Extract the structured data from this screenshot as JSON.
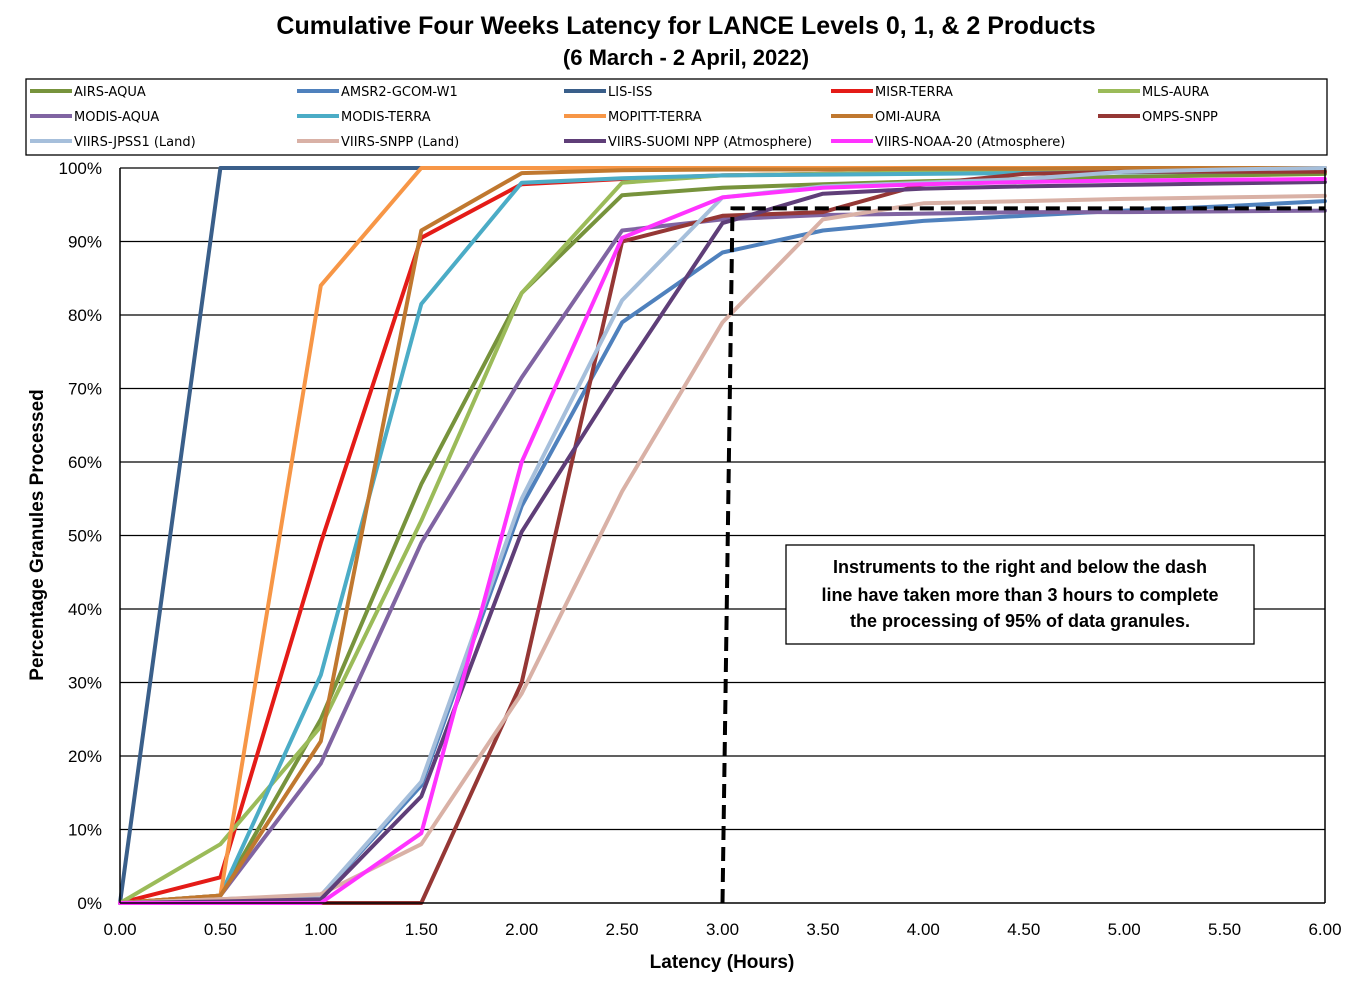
{
  "chart_data": {
    "type": "line",
    "title": "Cumulative Four Weeks Latency  for LANCE Levels 0, 1, & 2 Products",
    "subtitle": "(6  March   - 2  April,  2022)",
    "xlabel": "Latency (Hours)",
    "ylabel": "Percentage Granules Processed",
    "xlim": [
      0,
      6
    ],
    "ylim": [
      0,
      100
    ],
    "x": [
      0,
      0.5,
      1,
      1.5,
      2,
      2.5,
      3,
      3.5,
      4,
      4.5,
      5,
      5.5,
      6
    ],
    "x_tick_labels": [
      "0.00",
      "0.50",
      "1.00",
      "1.50",
      "2.00",
      "2.50",
      "3.00",
      "3.50",
      "4.00",
      "4.50",
      "5.00",
      "5.50",
      "6.00"
    ],
    "y_ticks": [
      0,
      10,
      20,
      30,
      40,
      50,
      60,
      70,
      80,
      90,
      100
    ],
    "y_tick_labels": [
      "0%",
      "10%",
      "20%",
      "30%",
      "40%",
      "50%",
      "60%",
      "70%",
      "80%",
      "90%",
      "100%"
    ],
    "grid": "horizontal",
    "legend_position": "top",
    "series": [
      {
        "name": "AIRS-AQUA",
        "color": "#77933C",
        "values": [
          0,
          1,
          25,
          57,
          83,
          96.3,
          97.3,
          97.8,
          98.2,
          98.5,
          98.8,
          99.0,
          99.2
        ]
      },
      {
        "name": "AMSR2-GCOM-W1",
        "color": "#4F81BD",
        "values": [
          0,
          0.5,
          1,
          16,
          54,
          79,
          88.5,
          91.5,
          92.8,
          93.5,
          94.2,
          94.8,
          95.5
        ]
      },
      {
        "name": "LIS-ISS",
        "color": "#3A5F8A",
        "values": [
          0,
          100,
          100,
          100,
          100,
          100,
          100,
          100,
          100,
          100,
          100,
          100,
          100
        ]
      },
      {
        "name": "MISR-TERRA",
        "color": "#E41B17",
        "values": [
          0,
          3.5,
          49,
          90.5,
          97.8,
          98.5,
          99,
          99.2,
          99.4,
          99.5,
          99.6,
          99.7,
          99.8
        ]
      },
      {
        "name": "MLS-AURA",
        "color": "#9BBB59",
        "values": [
          0,
          8,
          24,
          52,
          83,
          98,
          99,
          99.2,
          99.4,
          99.6,
          99.7,
          99.8,
          99.9
        ]
      },
      {
        "name": "MODIS-AQUA",
        "color": "#8064A2",
        "values": [
          0,
          1,
          19,
          49,
          71.5,
          91.5,
          93,
          93.6,
          93.8,
          94,
          94,
          94.1,
          94.2
        ]
      },
      {
        "name": "MODIS-TERRA",
        "color": "#4BACC6",
        "values": [
          0,
          1,
          31,
          81.5,
          98,
          98.6,
          99,
          99.1,
          99.2,
          99.3,
          99.4,
          99.5,
          99.6
        ]
      },
      {
        "name": "MOPITT-TERRA",
        "color": "#F79646",
        "values": [
          0,
          1,
          84,
          100,
          100,
          100,
          100,
          100,
          100,
          100,
          100,
          100,
          100
        ]
      },
      {
        "name": "OMI-AURA",
        "color": "#C0782F",
        "values": [
          0,
          1,
          22,
          91.5,
          99.3,
          99.7,
          99.8,
          99.8,
          99.9,
          99.9,
          100,
          100,
          100
        ]
      },
      {
        "name": "OMPS-SNPP",
        "color": "#953735",
        "values": [
          0,
          0,
          0,
          0,
          30,
          90,
          93.5,
          94,
          97.8,
          99.2,
          99.5,
          99.5,
          99.5
        ]
      },
      {
        "name": "VIIRS-JPSS1 (Land)",
        "color": "#A6BFDB",
        "values": [
          0,
          0.5,
          1,
          16.5,
          55,
          82,
          96,
          97.5,
          98,
          98.5,
          99.5,
          99.8,
          100
        ]
      },
      {
        "name": "VIIRS-SNPP (Land)",
        "color": "#D9B1A6",
        "values": [
          0,
          0.5,
          1.2,
          8,
          28.5,
          56,
          79,
          93,
          95.2,
          95.5,
          95.8,
          96,
          96.2
        ]
      },
      {
        "name": "VIIRS-SUOMI NPP (Atmosphere)",
        "color": "#5F3E78",
        "values": [
          0,
          0.2,
          0.5,
          14.5,
          50.5,
          72,
          92.5,
          96.5,
          97.2,
          97.5,
          97.7,
          97.9,
          98.1
        ]
      },
      {
        "name": "VIIRS-NOAA-20 (Atmosphere)",
        "color": "#FF33FF",
        "values": [
          0,
          0,
          0,
          9.5,
          60,
          90.5,
          96,
          97.3,
          97.8,
          98.1,
          98.3,
          98.4,
          98.5
        ]
      }
    ],
    "threshold_line": {
      "points": [
        [
          3,
          0
        ],
        [
          3.05,
          94.5
        ],
        [
          6,
          94.5
        ]
      ],
      "style": "dashed",
      "color": "#000000"
    },
    "annotation": {
      "lines": [
        "Instruments to the right and below the dash",
        "line have taken more than 3 hours to complete",
        "the processing of 95% of data granules."
      ],
      "x": 4.25,
      "y": 44
    }
  }
}
